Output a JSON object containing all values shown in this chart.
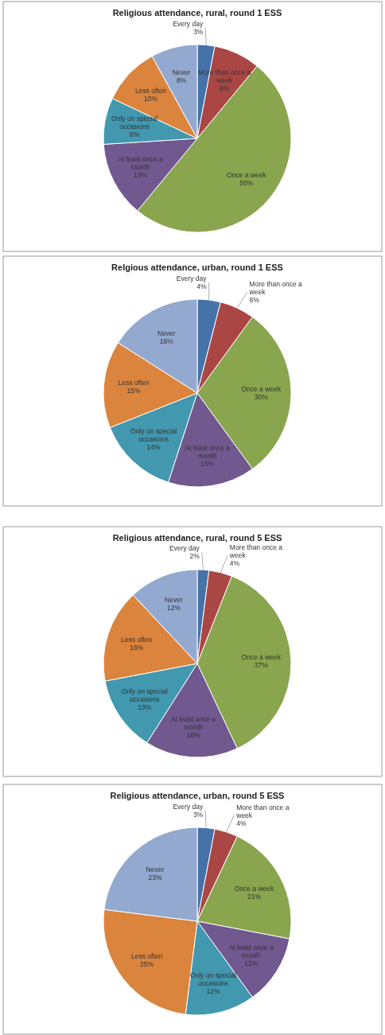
{
  "chart_data": [
    {
      "type": "pie",
      "title": "Religious attendance, rural, round 1 ESS",
      "categories": [
        "Every day",
        "More than once a week",
        "Once a week",
        "At least once a month",
        "Only on special occasions",
        "Less often",
        "Never"
      ],
      "values": [
        3,
        8,
        50,
        13,
        8,
        10,
        8
      ],
      "value_labels": [
        "3%",
        "8%",
        "50%",
        "13%",
        "8%",
        "10%",
        "8%"
      ],
      "colors": [
        "#4572a7",
        "#aa4643",
        "#89a54e",
        "#71588f",
        "#4198af",
        "#db843d",
        "#93a9cf"
      ],
      "legend": false
    },
    {
      "type": "pie",
      "title": "Relgious attendance, urban, round 1 ESS",
      "categories": [
        "Every day",
        "More than once a week",
        "Once a week",
        "At least once a month",
        "Only on special occasions",
        "Less often",
        "Never"
      ],
      "values": [
        4,
        6,
        30,
        15,
        14,
        15,
        16
      ],
      "value_labels": [
        "4%",
        "6%",
        "30%",
        "15%",
        "14%",
        "15%",
        "16%"
      ],
      "colors": [
        "#4572a7",
        "#aa4643",
        "#89a54e",
        "#71588f",
        "#4198af",
        "#db843d",
        "#93a9cf"
      ],
      "legend": false
    },
    {
      "type": "pie",
      "title": "Religious attendance, rural, round 5 ESS",
      "categories": [
        "Every day",
        "More than once a week",
        "Once a week",
        "At least once a month",
        "Only on special occasions",
        "Less often",
        "Never"
      ],
      "values": [
        2,
        4,
        37,
        16,
        13,
        16,
        12
      ],
      "value_labels": [
        "2%",
        "4%",
        "37%",
        "16%",
        "13%",
        "16%",
        "12%"
      ],
      "colors": [
        "#4572a7",
        "#aa4643",
        "#89a54e",
        "#71588f",
        "#4198af",
        "#db843d",
        "#93a9cf"
      ],
      "legend": false
    },
    {
      "type": "pie",
      "title": "Religious attendance, urban, round 5 ESS",
      "categories": [
        "Every day",
        "More than once a week",
        "Once a week",
        "At least once a month",
        "Only on special occasions",
        "Less often",
        "Never"
      ],
      "values": [
        3,
        4,
        21,
        12,
        12,
        25,
        23
      ],
      "value_labels": [
        "3%",
        "4%",
        "21%",
        "12%",
        "12%",
        "25%",
        "23%"
      ],
      "colors": [
        "#4572a7",
        "#aa4643",
        "#89a54e",
        "#71588f",
        "#4198af",
        "#db843d",
        "#93a9cf"
      ],
      "legend": false
    }
  ]
}
